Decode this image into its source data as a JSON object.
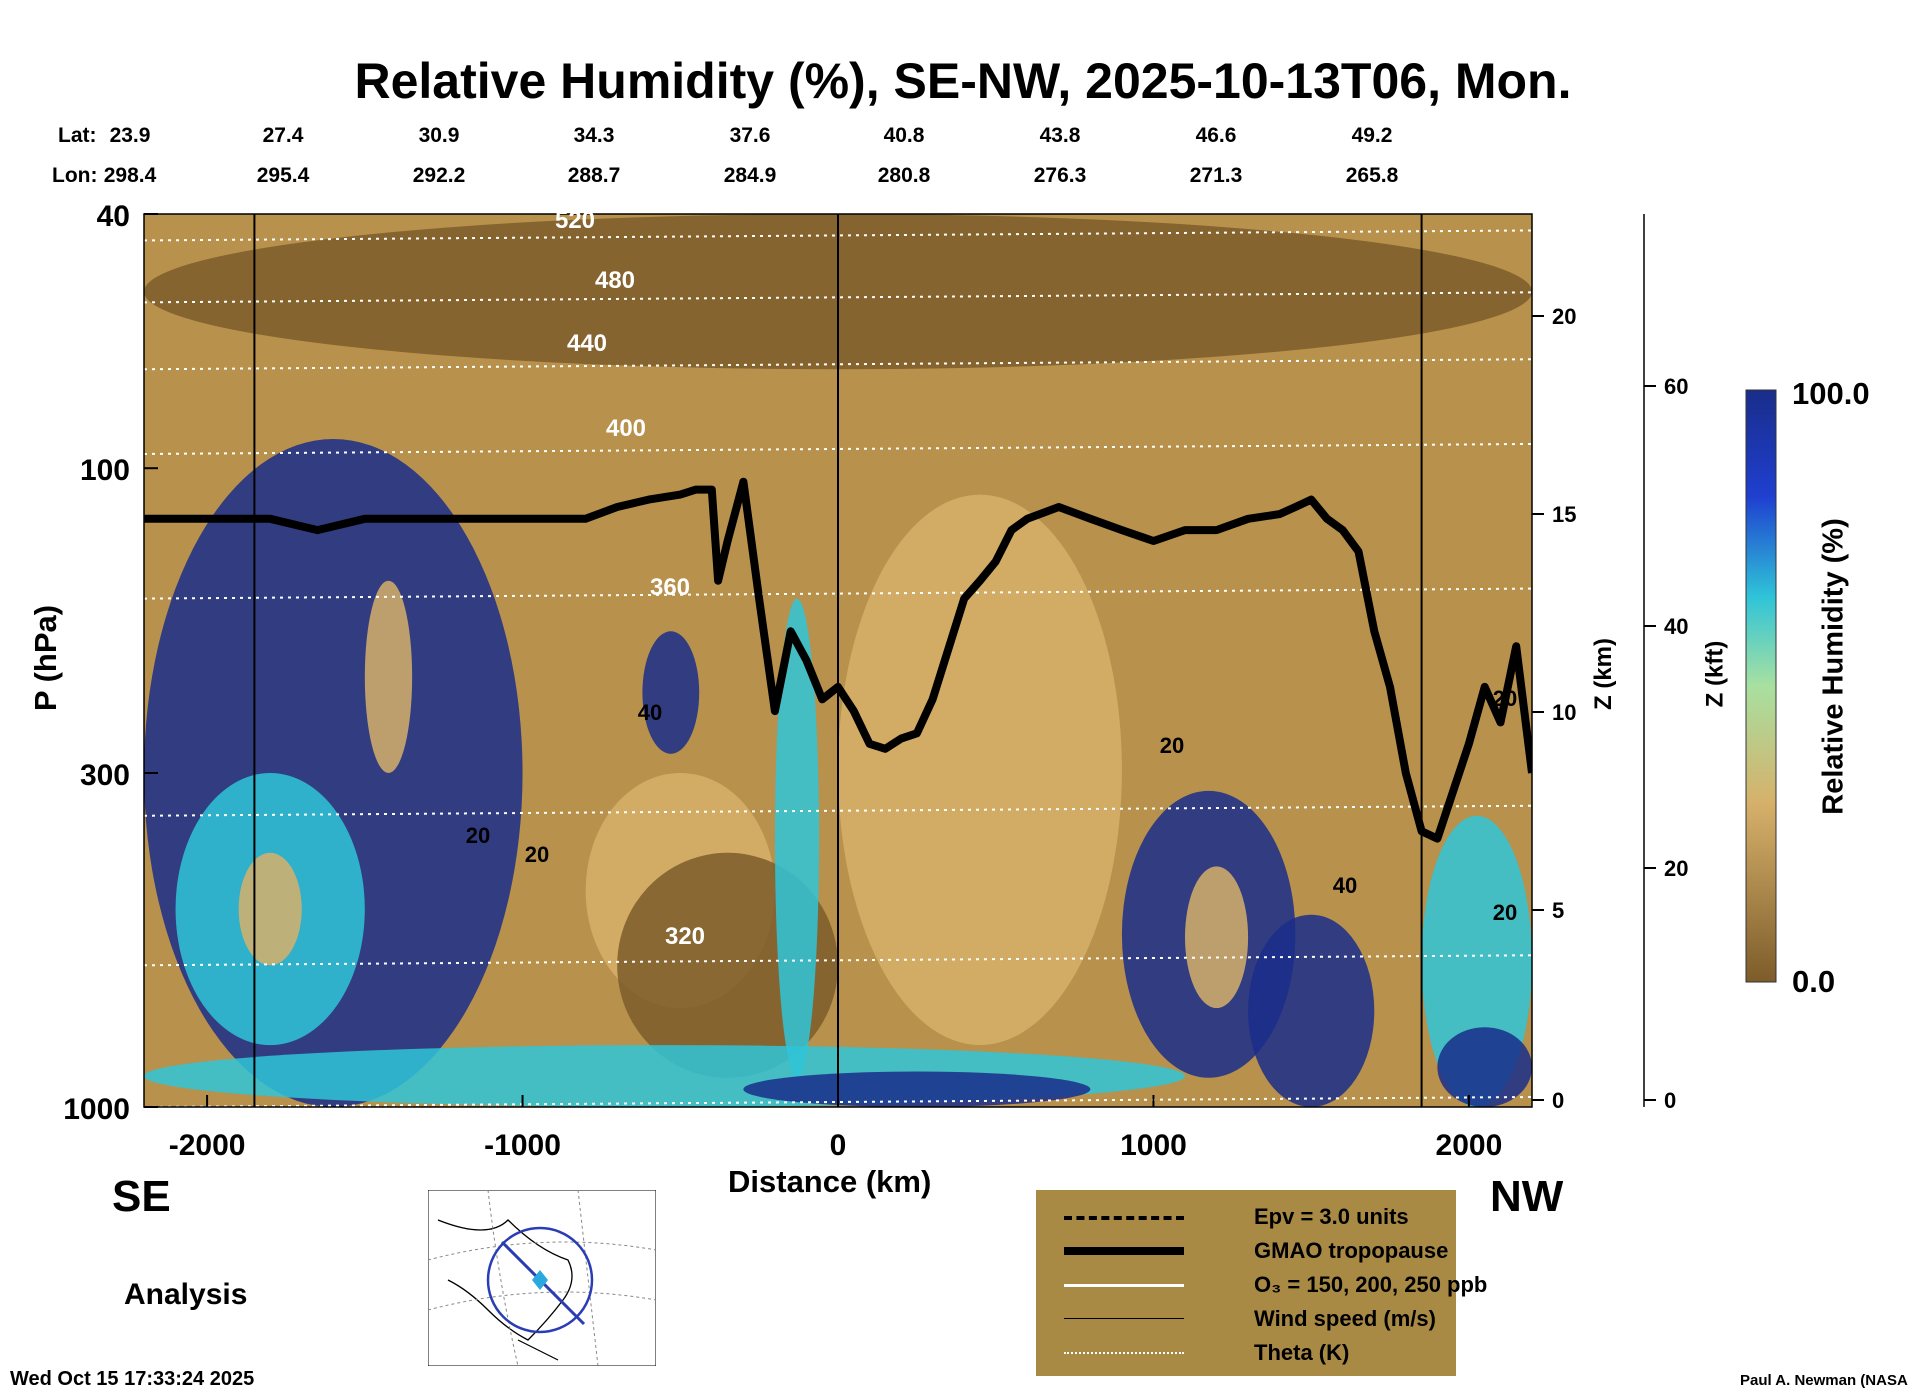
{
  "chart_data": {
    "type": "heatmap",
    "title": "Relative Humidity (%), SE-NW, 2025-10-13T06, Mon.",
    "xlabel": "Distance (km)",
    "ylabel": "P (hPa)",
    "y2label": "Z (km)",
    "y3label": "Z (kft)",
    "colorbar_label": "Relative Humidity (%)",
    "colorbar_range": [
      0.0,
      100.0
    ],
    "colorbar_ticks": [
      "100.0",
      "0.0"
    ],
    "colors": {
      "low": "#7d5c2a",
      "mid": "#d6b06a",
      "cyan": "#2fc4d8",
      "high": "#1a2d8a"
    },
    "xlim": [
      -2200,
      2200
    ],
    "ylim": [
      1000,
      40
    ],
    "y_scale": "log",
    "x_ticks": [
      "-2000",
      "-1000",
      "0",
      "1000",
      "2000"
    ],
    "y_ticks": [
      "40",
      "100",
      "300",
      "1000"
    ],
    "z_km_ticks": [
      "20",
      "15",
      "10",
      "5",
      "0"
    ],
    "z_kft_ticks": [
      "60",
      "40",
      "20",
      "0"
    ],
    "lat_label": "Lat:",
    "lon_label": "Lon:",
    "lat_values": [
      "23.9",
      "27.4",
      "30.9",
      "34.3",
      "37.6",
      "40.8",
      "43.8",
      "46.6",
      "49.2"
    ],
    "lon_values": [
      "298.4",
      "295.4",
      "292.2",
      "288.7",
      "284.9",
      "280.8",
      "276.3",
      "271.3",
      "265.8"
    ],
    "theta_labels": [
      "520",
      "480",
      "440",
      "400",
      "360",
      "320"
    ],
    "wind_labels": [
      "40",
      "20",
      "20",
      "20",
      "40",
      "20",
      "20"
    ],
    "tropopause": {
      "x": [
        -2200,
        -2000,
        -1800,
        -1650,
        -1500,
        -1200,
        -1000,
        -800,
        -700,
        -600,
        -500,
        -450,
        -400,
        -380,
        -350,
        -300,
        -250,
        -200,
        -150,
        -100,
        -50,
        0,
        50,
        100,
        150,
        200,
        250,
        300,
        400,
        450,
        500,
        550,
        600,
        700,
        800,
        900,
        1000,
        1100,
        1200,
        1300,
        1400,
        1450,
        1500,
        1550,
        1600,
        1650,
        1700,
        1750,
        1800,
        1850,
        1900,
        2000,
        2050,
        2100,
        2150,
        2200
      ],
      "p": [
        120,
        120,
        120,
        125,
        120,
        120,
        120,
        120,
        115,
        112,
        110,
        108,
        108,
        150,
        130,
        105,
        160,
        240,
        180,
        200,
        230,
        220,
        240,
        270,
        275,
        265,
        260,
        230,
        160,
        150,
        140,
        125,
        120,
        115,
        120,
        125,
        130,
        125,
        125,
        120,
        118,
        115,
        112,
        120,
        125,
        135,
        180,
        220,
        300,
        370,
        380,
        270,
        220,
        250,
        190,
        300
      ]
    }
  },
  "labels": {
    "se": "SE",
    "nw": "NW",
    "analysis": "Analysis",
    "timestamp": "Wed Oct 15 17:33:24 2025",
    "credit": "Paul A. Newman (NASA"
  },
  "legend": [
    {
      "label": "Epv = 3.0 units",
      "style": "dashed"
    },
    {
      "label": "GMAO tropopause",
      "style": "thick"
    },
    {
      "label": "O₃ = 150, 200, 250 ppb",
      "style": "white"
    },
    {
      "label": "Wind speed (m/s)",
      "style": "thin"
    },
    {
      "label": "Theta (K)",
      "style": "dotted"
    }
  ]
}
